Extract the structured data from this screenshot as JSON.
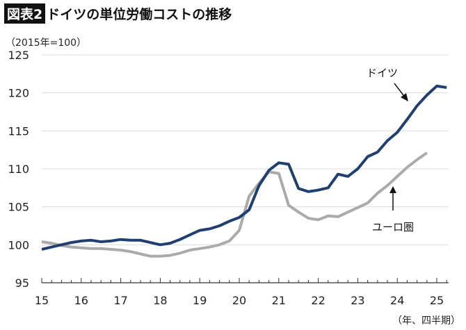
{
  "header": {
    "badge": "図表2",
    "title": "ドイツの単位労働コストの推移"
  },
  "chart_data": {
    "type": "line",
    "title": "ドイツの単位労働コストの推移",
    "unit_label": "（2015年=100）",
    "xlabel": "（年、四半期）",
    "ylim": [
      95,
      125
    ],
    "yticks": [
      95,
      100,
      105,
      110,
      115,
      120,
      125
    ],
    "xticks": [
      "15",
      "16",
      "17",
      "18",
      "19",
      "20",
      "21",
      "22",
      "23",
      "24",
      "25"
    ],
    "grid": true,
    "series": [
      {
        "name": "ドイツ",
        "color": "#1f3f6e",
        "start": "2015Q1",
        "values": [
          99.4,
          99.7,
          100.0,
          100.3,
          100.5,
          100.6,
          100.4,
          100.5,
          100.7,
          100.6,
          100.6,
          100.3,
          100.0,
          100.2,
          100.7,
          101.3,
          101.9,
          102.1,
          102.5,
          103.1,
          103.6,
          104.6,
          107.8,
          109.8,
          110.8,
          110.6,
          107.4,
          107.0,
          107.2,
          107.5,
          109.3,
          109.0,
          110.0,
          111.6,
          112.2,
          113.7,
          114.8,
          116.5,
          118.3,
          119.7,
          120.9,
          120.7
        ]
      },
      {
        "name": "ユーロ圏",
        "color": "#aaaaaa",
        "start": "2015Q1",
        "values": [
          100.4,
          100.2,
          99.9,
          99.7,
          99.6,
          99.5,
          99.5,
          99.4,
          99.3,
          99.1,
          98.8,
          98.5,
          98.5,
          98.6,
          98.9,
          99.3,
          99.5,
          99.7,
          100.0,
          100.5,
          101.9,
          106.4,
          108.1,
          109.6,
          109.4,
          105.2,
          104.3,
          103.5,
          103.3,
          103.8,
          103.7,
          104.3,
          104.9,
          105.5,
          106.8,
          107.8,
          109.0,
          110.2,
          111.2,
          112.1
        ]
      }
    ]
  }
}
